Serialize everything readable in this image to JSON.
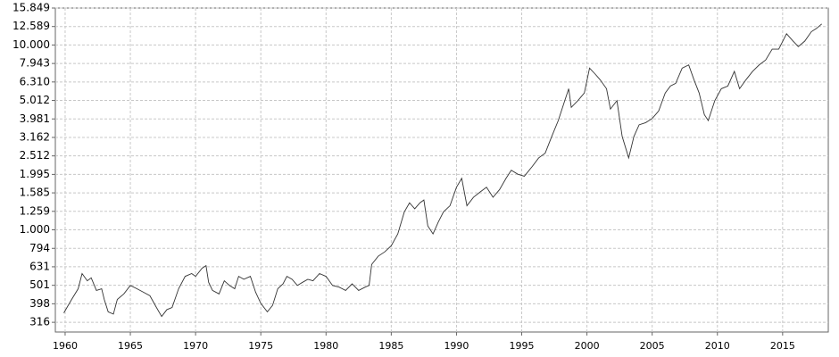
{
  "chart_data": {
    "type": "line",
    "log_scale": "y",
    "grid": true,
    "xlim": [
      1959.25,
      2018.5
    ],
    "xticks": [
      1960,
      1965,
      1970,
      1975,
      1980,
      1985,
      1990,
      1995,
      2000,
      2005,
      2010,
      2015
    ],
    "ylim": [
      280,
      15849
    ],
    "yticks": [
      316,
      398,
      501,
      631,
      794,
      {
        "value": 1000,
        "label": "1.000"
      },
      {
        "value": 1259,
        "label": "1.259"
      },
      {
        "value": 1585,
        "label": "1.585"
      },
      {
        "value": 1995,
        "label": "1.995"
      },
      {
        "value": 2512,
        "label": "2.512"
      },
      {
        "value": 3162,
        "label": "3.162"
      },
      {
        "value": 3981,
        "label": "3.981"
      },
      {
        "value": 5012,
        "label": "5.012"
      },
      {
        "value": 6310,
        "label": "6.310"
      },
      {
        "value": 7943,
        "label": "7.943"
      },
      {
        "value": 10000,
        "label": "10.000"
      },
      {
        "value": 12589,
        "label": "12.589"
      },
      {
        "value": 15849,
        "label": "15.849"
      }
    ],
    "color": "#333333",
    "x": [
      1959.9,
      1960.5,
      1961.0,
      1961.3,
      1961.7,
      1962.0,
      1962.4,
      1962.8,
      1963.0,
      1963.3,
      1963.7,
      1964.0,
      1964.5,
      1965.0,
      1965.5,
      1966.0,
      1966.5,
      1967.0,
      1967.4,
      1967.8,
      1968.2,
      1968.7,
      1969.2,
      1969.7,
      1970.0,
      1970.5,
      1970.8,
      1971.0,
      1971.3,
      1971.8,
      1972.2,
      1972.6,
      1973.0,
      1973.3,
      1973.7,
      1974.2,
      1974.6,
      1975.0,
      1975.5,
      1975.9,
      1976.3,
      1976.7,
      1977.0,
      1977.4,
      1977.8,
      1978.2,
      1978.6,
      1979.0,
      1979.5,
      1980.0,
      1980.5,
      1981.0,
      1981.5,
      1982.0,
      1982.5,
      1983.0,
      1983.3,
      1983.5,
      1984.0,
      1984.5,
      1985.0,
      1985.5,
      1986.0,
      1986.4,
      1986.8,
      1987.2,
      1987.5,
      1987.8,
      1988.2,
      1988.6,
      1989.0,
      1989.5,
      1990.0,
      1990.4,
      1990.8,
      1991.3,
      1991.8,
      1992.3,
      1992.8,
      1993.3,
      1993.8,
      1994.2,
      1994.7,
      1995.2,
      1995.8,
      1996.3,
      1996.8,
      1997.3,
      1997.8,
      1998.3,
      1998.6,
      1998.8,
      1999.3,
      1999.8,
      2000.2,
      2000.6,
      2001.0,
      2001.5,
      2001.8,
      2002.3,
      2002.7,
      2003.2,
      2003.6,
      2004.0,
      2004.5,
      2005.0,
      2005.5,
      2006.0,
      2006.4,
      2006.8,
      2007.3,
      2007.8,
      2008.2,
      2008.6,
      2009.0,
      2009.3,
      2009.8,
      2010.3,
      2010.8,
      2011.3,
      2011.7,
      2012.2,
      2012.7,
      2013.2,
      2013.7,
      2014.2,
      2014.7,
      2015.3,
      2015.8,
      2016.2,
      2016.7,
      2017.2,
      2017.6,
      2018.0
    ],
    "values": [
      355,
      420,
      480,
      580,
      530,
      550,
      470,
      480,
      420,
      360,
      350,
      420,
      450,
      500,
      480,
      460,
      440,
      380,
      340,
      370,
      380,
      480,
      560,
      580,
      560,
      620,
      640,
      520,
      470,
      450,
      530,
      500,
      480,
      560,
      540,
      560,
      460,
      400,
      360,
      390,
      480,
      510,
      560,
      540,
      500,
      520,
      540,
      530,
      580,
      560,
      500,
      490,
      470,
      510,
      470,
      490,
      500,
      650,
      720,
      760,
      820,
      950,
      1250,
      1400,
      1300,
      1400,
      1450,
      1050,
      950,
      1100,
      1250,
      1350,
      1700,
      1900,
      1350,
      1500,
      1600,
      1700,
      1500,
      1650,
      1900,
      2100,
      2000,
      1950,
      2200,
      2450,
      2600,
      3200,
      3900,
      5000,
      5800,
      4600,
      5000,
      5500,
      7500,
      7000,
      6500,
      5800,
      4500,
      5000,
      3200,
      2450,
      3200,
      3700,
      3800,
      4000,
      4400,
      5500,
      6000,
      6200,
      7500,
      7800,
      6500,
      5500,
      4200,
      3900,
      5000,
      5800,
      6000,
      7200,
      5800,
      6500,
      7200,
      7800,
      8300,
      9500,
      9500,
      11500,
      10500,
      9800,
      10500,
      11800,
      12300,
      13000
    ]
  }
}
